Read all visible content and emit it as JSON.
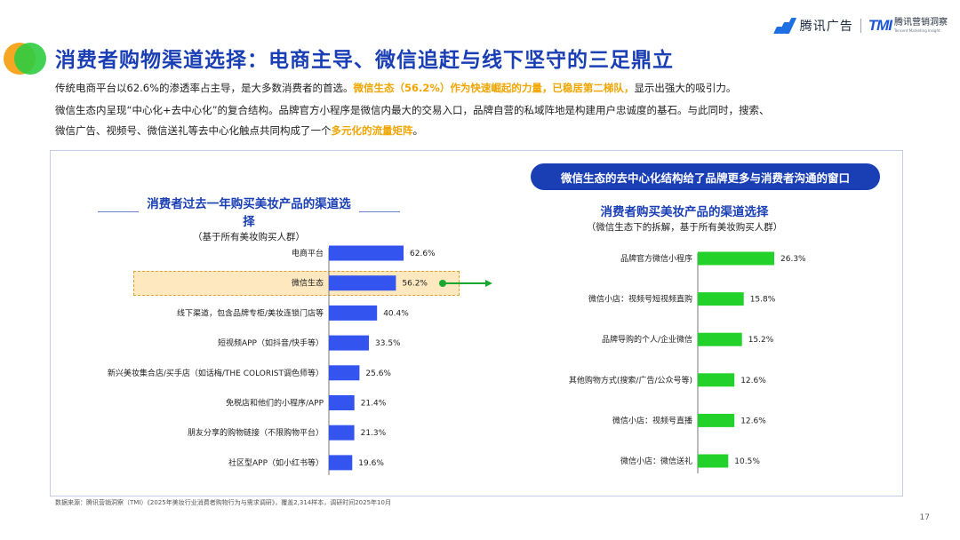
{
  "brand": {
    "tencent_ads": "腾讯广告",
    "tmi_mark": "TMI",
    "tmi_cn": "腾讯营销洞察",
    "tmi_en": "Tencent Marketing Insight",
    "colors": {
      "primary": "#1a3fb4",
      "accent_orange": "#f0a500",
      "bar_blue": "#3454f0",
      "bar_green": "#22d22a"
    }
  },
  "title": "消费者购物渠道选择：电商主导、微信追赶与线下坚守的三足鼎立",
  "paragraphs": {
    "p1_a": "传统电商平台以62.6%的渗透率占主导，是大多数消费者的首选。",
    "p1_b": "微信生态（56.2%）作为快速崛起的力量，已稳居第二梯队，",
    "p1_c": "显示出强大的吸引力。",
    "p2": "微信生态内呈现“中心化+去中心化”的复合结构。品牌官方小程序是微信内最大的交易入口，品牌自营的私域阵地是构建用户忠诚度的基石。与此同时，搜索、",
    "p3_a": "微信广告、视频号、微信送礼等去中心化触点共同构成了一个",
    "p3_b": "多元化的流量矩阵",
    "p3_c": "。"
  },
  "callout": "微信生态的去中心化结构给了品牌更多与消费者沟通的窗口",
  "chart_data": [
    {
      "type": "bar",
      "orientation": "horizontal",
      "title": "消费者过去一年购买美妆产品的渠道选择",
      "subtitle": "（基于所有美妆购买人群）",
      "categories": [
        "电商平台",
        "微信生态",
        "线下渠道，包含品牌专柜/美妆连锁门店等",
        "短视频APP（如抖音/快手等）",
        "新兴美妆集合店/买手店（如话梅/THE COLORIST调色师等）",
        "免税店和他们的小程序/APP",
        "朋友分享的购物链接（不限购物平台）",
        "社区型APP（如小红书等）"
      ],
      "values": [
        62.6,
        56.2,
        40.4,
        33.5,
        25.6,
        21.4,
        21.3,
        19.6
      ],
      "value_labels": [
        "62.6%",
        "56.2%",
        "40.4%",
        "33.5%",
        "25.6%",
        "21.4%",
        "21.3%",
        "19.6%"
      ],
      "highlight": "微信生态",
      "color": "#3454f0",
      "xlim": [
        0,
        62.6
      ],
      "grid": false
    },
    {
      "type": "bar",
      "orientation": "horizontal",
      "title": "消费者购买美妆产品的渠道选择",
      "subtitle": "（微信生态下的拆解，基于所有美妆购买人群）",
      "categories": [
        "品牌官方微信小程序",
        "微信小店：视频号短视频直购",
        "品牌导购的个人/企业微信",
        "其他购物方式(搜索/广告/公众号等)",
        "微信小店：视频号直播",
        "微信小店：微信送礼"
      ],
      "values": [
        26.3,
        15.8,
        15.2,
        12.6,
        12.6,
        10.5
      ],
      "value_labels": [
        "26.3%",
        "15.8%",
        "15.2%",
        "12.6%",
        "12.6%",
        "10.5%"
      ],
      "color": "#22d22a",
      "xlim": [
        0,
        26.3
      ],
      "grid": false
    }
  ],
  "source": "数据来源：腾讯营销洞察（TMI）《2025年美妆行业消费者购物行为与需求调研》，覆盖2,314样本，调研时间2025年10月",
  "page_number": "17"
}
